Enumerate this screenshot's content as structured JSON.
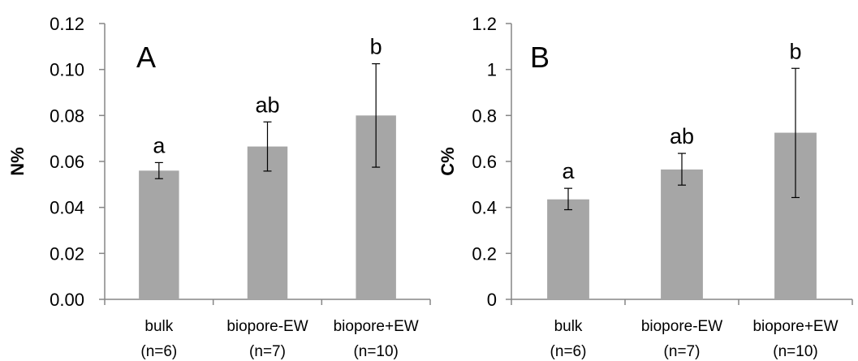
{
  "chart_data": [
    {
      "type": "bar",
      "panel_label": "A",
      "ylabel": "N%",
      "xlabel": "",
      "ylim": [
        0,
        0.12
      ],
      "y_ticks": [
        "0.00",
        "0.02",
        "0.04",
        "0.06",
        "0.08",
        "0.10",
        "0.12"
      ],
      "categories": [
        {
          "name": "bulk",
          "n": "(n=6)"
        },
        {
          "name": "biopore-EW",
          "n": "(n=7)"
        },
        {
          "name": "biopore+EW",
          "n": "(n=10)"
        }
      ],
      "values": [
        0.056,
        0.0665,
        0.08
      ],
      "error_low": [
        0.0525,
        0.0558,
        0.0575
      ],
      "error_high": [
        0.0595,
        0.0772,
        0.1025
      ],
      "significance": [
        "a",
        "ab",
        "b"
      ],
      "bar_color": "#a6a6a6",
      "grid": false,
      "legend": "none"
    },
    {
      "type": "bar",
      "panel_label": "B",
      "ylabel": "C%",
      "xlabel": "",
      "ylim": [
        0,
        1.2
      ],
      "y_ticks": [
        "0",
        "0.2",
        "0.4",
        "0.6",
        "0.8",
        "1",
        "1.2"
      ],
      "categories": [
        {
          "name": "bulk",
          "n": "(n=6)"
        },
        {
          "name": "biopore-EW",
          "n": "(n=7)"
        },
        {
          "name": "biopore+EW",
          "n": "(n=10)"
        }
      ],
      "values": [
        0.435,
        0.565,
        0.725
      ],
      "error_low": [
        0.39,
        0.497,
        0.443
      ],
      "error_high": [
        0.483,
        0.635,
        1.005
      ],
      "significance": [
        "a",
        "ab",
        "b"
      ],
      "bar_color": "#a6a6a6",
      "grid": false,
      "legend": "none"
    }
  ]
}
